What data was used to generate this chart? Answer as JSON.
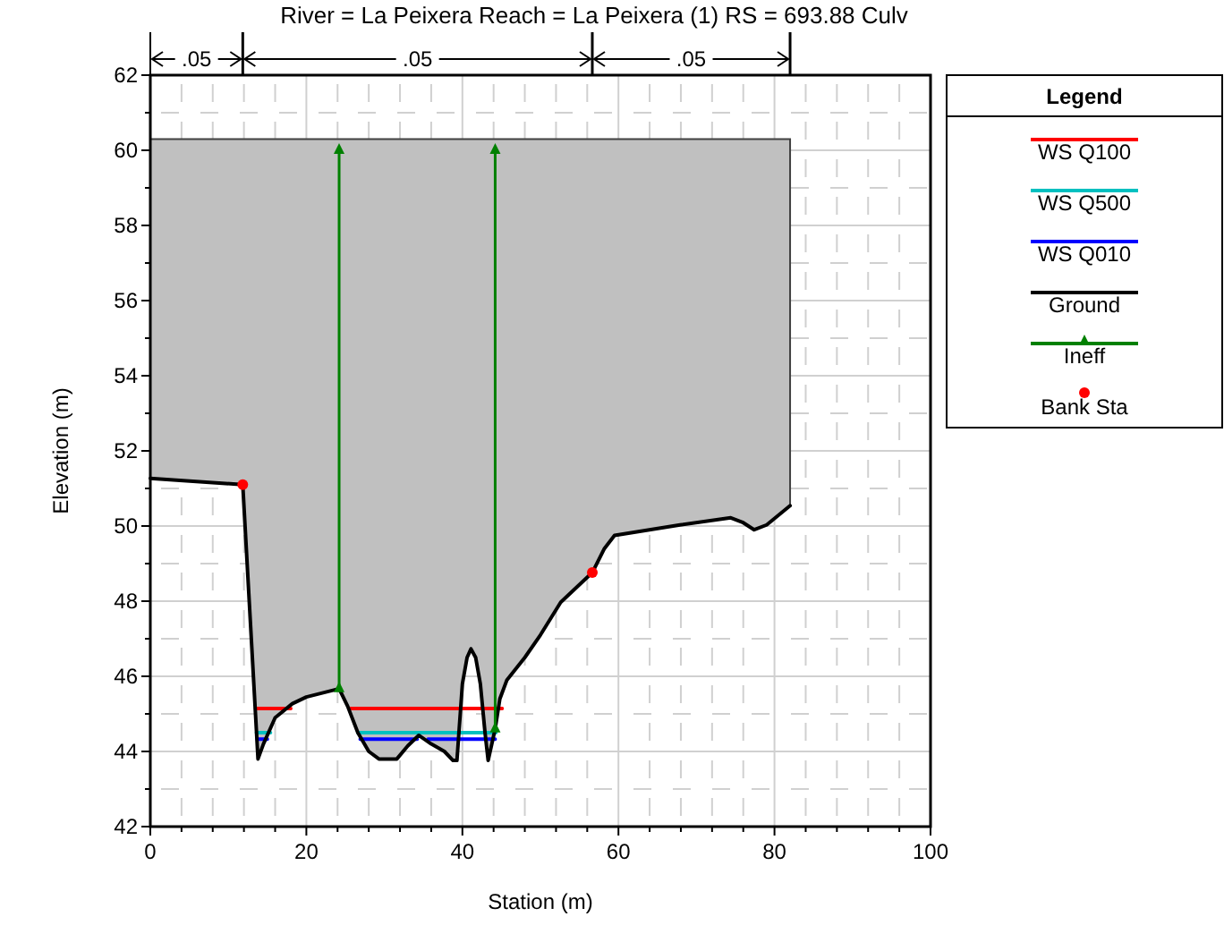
{
  "chart_data": {
    "type": "line",
    "title": "River = La Peixera   Reach = La Peixera (1)      RS = 693.88   Culv",
    "xlabel": "Station (m)",
    "ylabel": "Elevation (m)",
    "legend_title": "Legend",
    "xlim": [
      0,
      100
    ],
    "xticks": [
      0,
      20,
      40,
      60,
      80,
      100
    ],
    "ylim": [
      42,
      62
    ],
    "yticks": [
      42,
      44,
      46,
      48,
      50,
      52,
      54,
      56,
      58,
      60,
      62
    ],
    "grid": true,
    "legend": "top right",
    "annotations": [
      ".05",
      ".05",
      ".05"
    ],
    "series": [
      {
        "type": "area",
        "color": "#c0c0c0",
        "x": [
          0,
          11.85,
          13.8,
          14.5,
          16,
          18.2,
          20,
          24.2,
          25.3,
          26.6,
          28,
          29.3,
          31.6,
          33,
          34.4,
          36,
          37.7,
          38.8,
          39.3,
          40,
          40.6,
          41.1,
          41.7,
          42.3,
          42.9,
          43.3,
          44.2,
          44.8,
          45.7,
          48,
          50,
          52.6,
          56.65,
          58.2,
          59.5,
          67.9,
          74.4,
          75.9,
          77.4,
          79,
          82
        ],
        "values": [
          60.3,
          60.3,
          60.3,
          60.3,
          60.3,
          60.3,
          60.3,
          60.3,
          60.3,
          60.3,
          60.3,
          60.3,
          60.3,
          60.3,
          60.3,
          60.3,
          60.3,
          60.3,
          60.3,
          60.3,
          60.3,
          60.3,
          60.3,
          60.3,
          60.3,
          60.3,
          60.3,
          60.3,
          60.3,
          60.3,
          60.3,
          60.3,
          60.3,
          60.3,
          60.3,
          60.3,
          60.3,
          60.3,
          60.3,
          60.3,
          60.3
        ]
      },
      {
        "name": "WS Q100",
        "color": "#ff0000",
        "x": [
          13.5,
          18,
          21,
          25.5,
          45.1
        ],
        "values": [
          45.14,
          45.14,
          null,
          45.14,
          45.14
        ]
      },
      {
        "name": "WS Q500",
        "color": "#00c0c0",
        "x": [
          13.6,
          15.4,
          21,
          26.6,
          44.3
        ],
        "values": [
          44.5,
          44.5,
          null,
          44.5,
          44.5
        ]
      },
      {
        "name": "WS Q010",
        "color": "#0000ff",
        "x": [
          13.7,
          15,
          21,
          26.9,
          34.2,
          34.9,
          35.6,
          44.2
        ],
        "values": [
          44.33,
          44.33,
          null,
          44.33,
          44.33,
          null,
          44.33,
          44.33
        ]
      },
      {
        "name": "Ground",
        "color": "#000000",
        "x": [
          0,
          11.85,
          13.8,
          14.5,
          16,
          18.2,
          20,
          24.2,
          25.3,
          26.6,
          28,
          29.3,
          31.6,
          33,
          34.4,
          36,
          37.7,
          38.8,
          39.3,
          40,
          40.6,
          41.1,
          41.7,
          42.3,
          42.9,
          43.3,
          44.2,
          44.8,
          45.7,
          48,
          50,
          52.6,
          56.65,
          58.2,
          59.5,
          67.9,
          74.4,
          75.9,
          77.4,
          79,
          82
        ],
        "values": [
          51.27,
          51.1,
          43.8,
          44.2,
          44.9,
          45.27,
          45.45,
          45.67,
          45.2,
          44.5,
          44.0,
          43.8,
          43.8,
          44.15,
          44.43,
          44.2,
          44.0,
          43.76,
          43.76,
          45.8,
          46.5,
          46.73,
          46.5,
          45.8,
          44.5,
          43.76,
          44.6,
          45.4,
          45.9,
          46.5,
          47.1,
          47.97,
          48.76,
          49.4,
          49.75,
          50.03,
          50.22,
          50.1,
          49.9,
          50.03,
          50.54
        ]
      },
      {
        "name": "Ineff",
        "color": "#008000",
        "marker": "triangle",
        "x": [
          24.2,
          24.2,
          34,
          44.2,
          44.2
        ],
        "values": [
          45.67,
          60,
          null,
          44.6,
          60
        ]
      },
      {
        "name": "Bank Sta",
        "type": "scatter",
        "color": "#ff0000",
        "marker": "circle",
        "x": [
          11.85,
          56.65
        ],
        "values": [
          51.1,
          48.76
        ]
      }
    ]
  }
}
